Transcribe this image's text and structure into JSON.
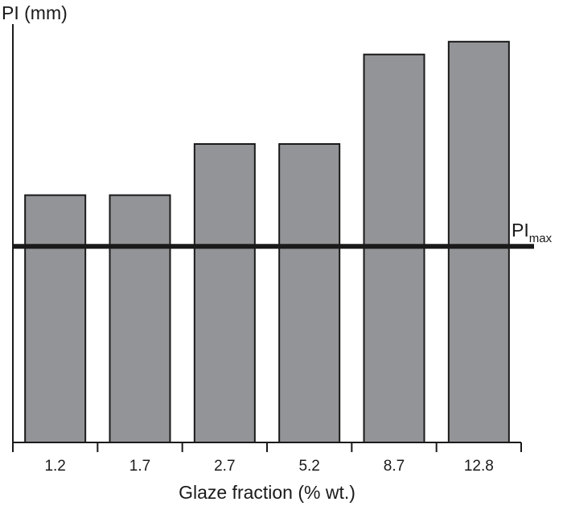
{
  "chart_data": {
    "type": "bar",
    "ylabel": "PI (mm)",
    "xlabel": "Glaze fraction (% wt.)",
    "categories": [
      "1.2",
      "1.7",
      "2.7",
      "5.2",
      "8.7",
      "12.8"
    ],
    "values": [
      0.58,
      0.58,
      0.7,
      0.7,
      0.91,
      0.94
    ],
    "ylim": [
      0,
      1
    ],
    "reference_line": {
      "label_main": "PI",
      "label_sub": "max",
      "value": 0.46
    },
    "grid": false,
    "colors": {
      "bar_fill": "#939497",
      "bar_stroke": "#1a1a1a",
      "axis": "#1a1a1a",
      "reference_line": "#1a1a1a"
    }
  }
}
